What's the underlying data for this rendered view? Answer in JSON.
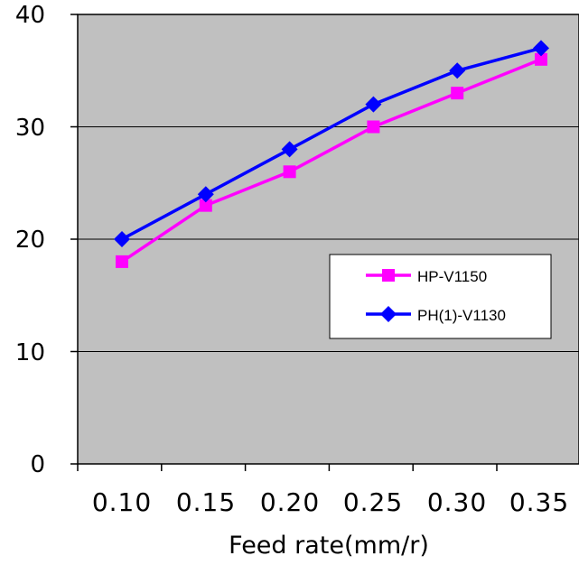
{
  "chart_data": {
    "type": "line",
    "title": "",
    "xlabel": "Feed rate(mm/r)",
    "ylabel": "",
    "categories": [
      "0.10",
      "0.15",
      "0.20",
      "0.25",
      "0.30",
      "0.35"
    ],
    "ylim": [
      0,
      40
    ],
    "yticks": [
      "0",
      "10",
      "20",
      "30",
      "40"
    ],
    "grid": "horizontal",
    "plot_background": "#c0c0c0",
    "legend_position": "right-middle",
    "series": [
      {
        "name": "HP-V1150",
        "values": [
          18,
          23,
          26,
          30,
          33,
          36
        ],
        "color": "#ff00ff",
        "marker": "square"
      },
      {
        "name": "PH(1)-V1130",
        "values": [
          20,
          24,
          28,
          32,
          35,
          37
        ],
        "color": "#0000ff",
        "marker": "diamond"
      }
    ]
  }
}
